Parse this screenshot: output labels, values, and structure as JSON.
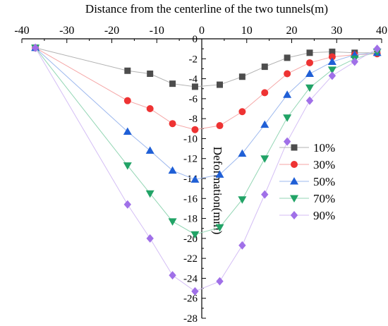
{
  "chart_data": {
    "type": "line",
    "title": "",
    "xlabel": "Distance from the centerline of the two tunnels(m)",
    "ylabel": "Deformation(mm)",
    "xlim": [
      -40,
      40
    ],
    "ylim": [
      -28,
      0
    ],
    "x_ticks": [
      -40,
      -30,
      -20,
      -10,
      0,
      10,
      20,
      30,
      40
    ],
    "y_ticks": [
      0,
      -2,
      -4,
      -6,
      -8,
      -10,
      -12,
      -14,
      -16,
      -18,
      -20,
      -22,
      -24,
      -26,
      -28
    ],
    "x_axis_position": "top",
    "y_axis_at_x": 0,
    "grid": false,
    "legend_position": "right-middle",
    "x": [
      -37,
      -16.5,
      -11.5,
      -6.5,
      -1.5,
      4,
      9,
      14,
      19,
      24,
      29,
      34,
      39
    ],
    "series": [
      {
        "name": "10%",
        "marker": "square",
        "color": "#4d4d4d",
        "line_color": "#b3b3b3",
        "values": [
          -0.9,
          -3.2,
          -3.5,
          -4.5,
          -4.8,
          -4.6,
          -3.8,
          -2.8,
          -1.9,
          -1.4,
          -1.3,
          -1.4,
          -1.4
        ]
      },
      {
        "name": "30%",
        "marker": "circle",
        "color": "#ee3333",
        "line_color": "#f5a6a6",
        "values": [
          -0.9,
          -6.2,
          -7.0,
          -8.5,
          -9.1,
          -8.7,
          -7.3,
          -5.4,
          -3.5,
          -2.4,
          -1.8,
          -1.6,
          -1.5
        ]
      },
      {
        "name": "50%",
        "marker": "triangle-up",
        "color": "#1f5fd6",
        "line_color": "#9db8ee",
        "values": [
          -0.9,
          -9.3,
          -11.2,
          -13.2,
          -14.1,
          -13.6,
          -11.5,
          -8.6,
          -5.6,
          -3.5,
          -2.3,
          -1.6,
          -1.4
        ]
      },
      {
        "name": "70%",
        "marker": "triangle-down",
        "color": "#21a366",
        "line_color": "#93d6b4",
        "values": [
          -0.9,
          -12.7,
          -15.5,
          -18.3,
          -19.6,
          -18.9,
          -16.1,
          -12.0,
          -7.9,
          -4.9,
          -3.1,
          -2.0,
          -1.3
        ]
      },
      {
        "name": "90%",
        "marker": "diamond",
        "color": "#a070e8",
        "line_color": "#d4bef5",
        "values": [
          -0.9,
          -16.6,
          -20.0,
          -23.7,
          -25.3,
          -24.3,
          -20.7,
          -15.6,
          -10.3,
          -6.2,
          -3.7,
          -2.3,
          -1.0
        ]
      }
    ]
  }
}
